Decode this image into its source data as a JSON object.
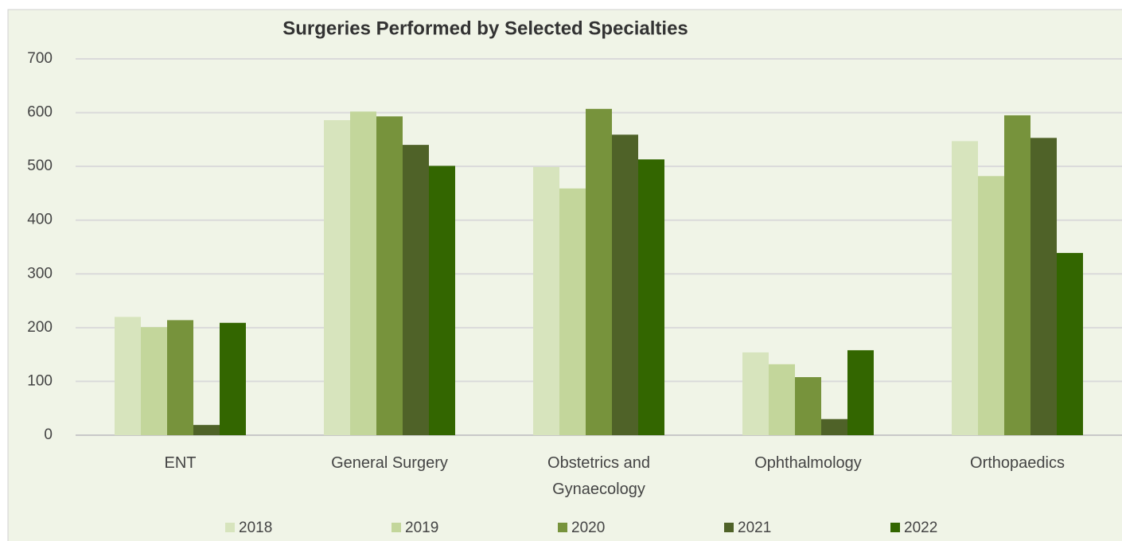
{
  "chart_data": {
    "type": "bar",
    "title": "Surgeries Performed by Selected Specialties",
    "categories": [
      "ENT",
      "General Surgery",
      "Obstetrics and Gynaecology",
      "Ophthalmology",
      "Orthopaedics"
    ],
    "series": [
      {
        "name": "2018",
        "color": "#d7e4bd",
        "values": [
          220,
          586,
          499,
          154,
          547
        ]
      },
      {
        "name": "2019",
        "color": "#c3d69b",
        "values": [
          201,
          602,
          459,
          132,
          482
        ]
      },
      {
        "name": "2020",
        "color": "#77933c",
        "values": [
          214,
          593,
          607,
          108,
          595
        ]
      },
      {
        "name": "2021",
        "color": "#4f6228",
        "values": [
          19,
          540,
          559,
          30,
          553
        ]
      },
      {
        "name": "2022",
        "color": "#336600",
        "values": [
          209,
          501,
          513,
          158,
          339
        ]
      }
    ],
    "ylim": [
      0,
      700
    ],
    "yticks": [
      0,
      100,
      200,
      300,
      400,
      500,
      600,
      700
    ],
    "grid": true,
    "legend": "bottom"
  }
}
